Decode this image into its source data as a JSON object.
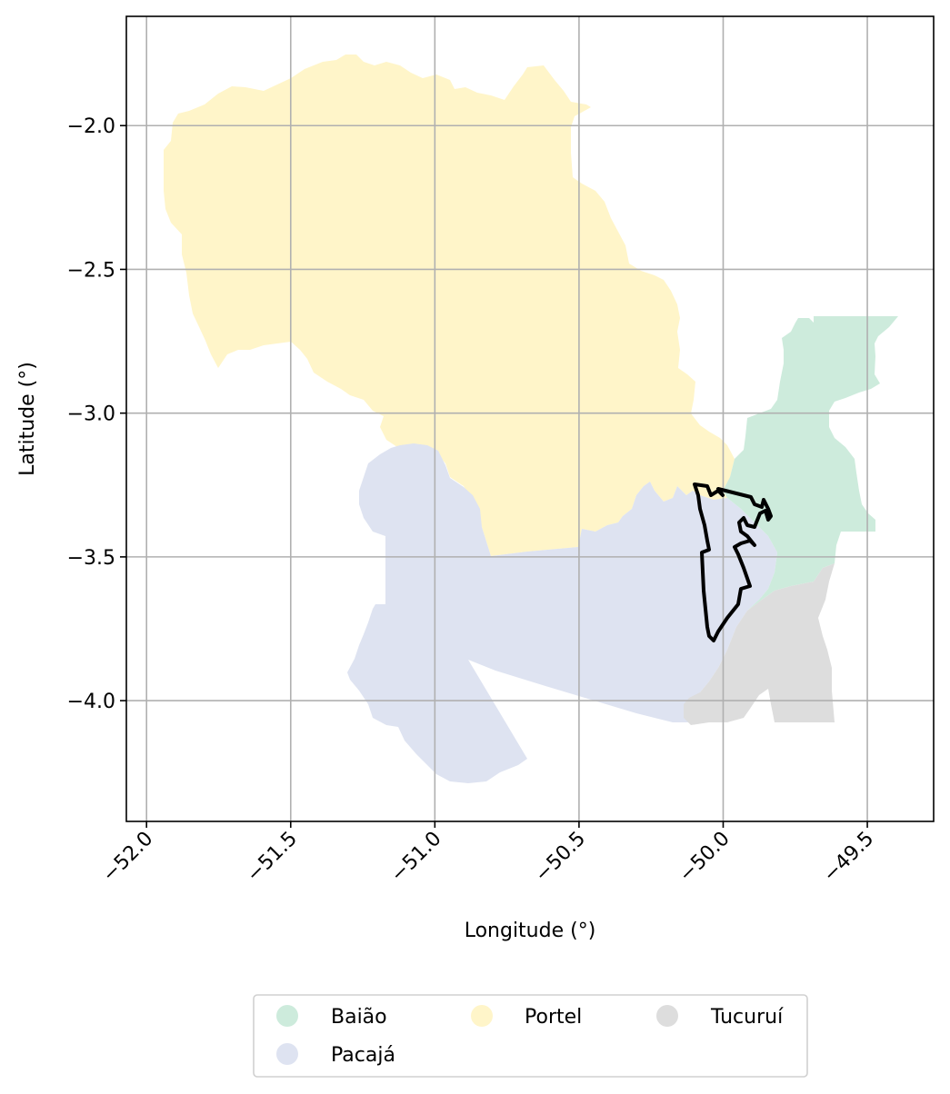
{
  "map": {
    "xlabel": "Longitude (°)",
    "ylabel": "Latitude (°)",
    "x_ticks": [
      {
        "value": -52.0,
        "label": "−52.0"
      },
      {
        "value": -51.5,
        "label": "−51.5"
      },
      {
        "value": -51.0,
        "label": "−51.0"
      },
      {
        "value": -50.5,
        "label": "−50.5"
      },
      {
        "value": -50.0,
        "label": "−50.0"
      },
      {
        "value": -49.5,
        "label": "−49.5"
      }
    ],
    "y_ticks": [
      {
        "value": -2.0,
        "label": "−2.0"
      },
      {
        "value": -2.5,
        "label": "−2.5"
      },
      {
        "value": -3.0,
        "label": "−3.0"
      },
      {
        "value": -3.5,
        "label": "−3.5"
      },
      {
        "value": -4.0,
        "label": "−4.0"
      }
    ],
    "xlim": [
      -52.07,
      -49.27
    ],
    "ylim": [
      -4.42,
      -1.62
    ],
    "grid": true,
    "legend_placement": "below plot, centered, 3 columns",
    "regions": [
      {
        "name": "Baião",
        "color": "#cdebdc"
      },
      {
        "name": "Pacajá",
        "color": "#dee3f1"
      },
      {
        "name": "Portel",
        "color": "#fff5c9"
      },
      {
        "name": "Tucuruí",
        "color": "#dddddd"
      }
    ],
    "highlight_outline_color": "#000000"
  }
}
